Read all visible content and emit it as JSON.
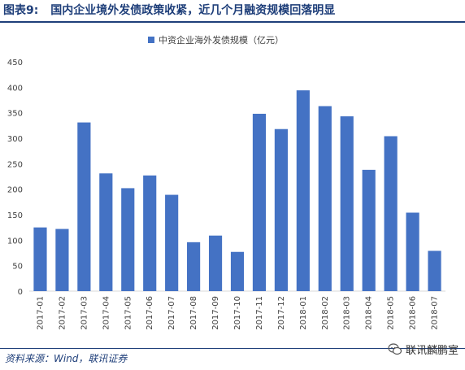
{
  "figure": {
    "number": "图表9:",
    "title": "国内企业境外发债政策收紧，近几个月融资规模回落明显"
  },
  "source": "资料来源：Wind，联讯证券",
  "watermark": "联讯麟鹏室",
  "colors": {
    "bar": "#4472C4",
    "title": "#1f3f7a",
    "axis": "#d9d9d9",
    "text": "#404040"
  },
  "chart_data": {
    "type": "bar",
    "categories": [
      "2017-01",
      "2017-02",
      "2017-03",
      "2017-04",
      "2017-05",
      "2017-06",
      "2017-07",
      "2017-08",
      "2017-09",
      "2017-10",
      "2017-11",
      "2017-12",
      "2018-01",
      "2018-02",
      "2018-03",
      "2018-04",
      "2018-05",
      "2018-06",
      "2018-07"
    ],
    "series": [
      {
        "name": "中资企业海外发债规模（亿元）",
        "values": [
          125,
          122,
          331,
          231,
          202,
          227,
          189,
          96,
          109,
          77,
          348,
          318,
          394,
          363,
          343,
          238,
          304,
          154,
          79
        ]
      }
    ],
    "ylim": [
      0,
      450
    ],
    "yticks": [
      0,
      50,
      100,
      150,
      200,
      250,
      300,
      350,
      400,
      450
    ],
    "legend": "top-center",
    "grid": false
  }
}
